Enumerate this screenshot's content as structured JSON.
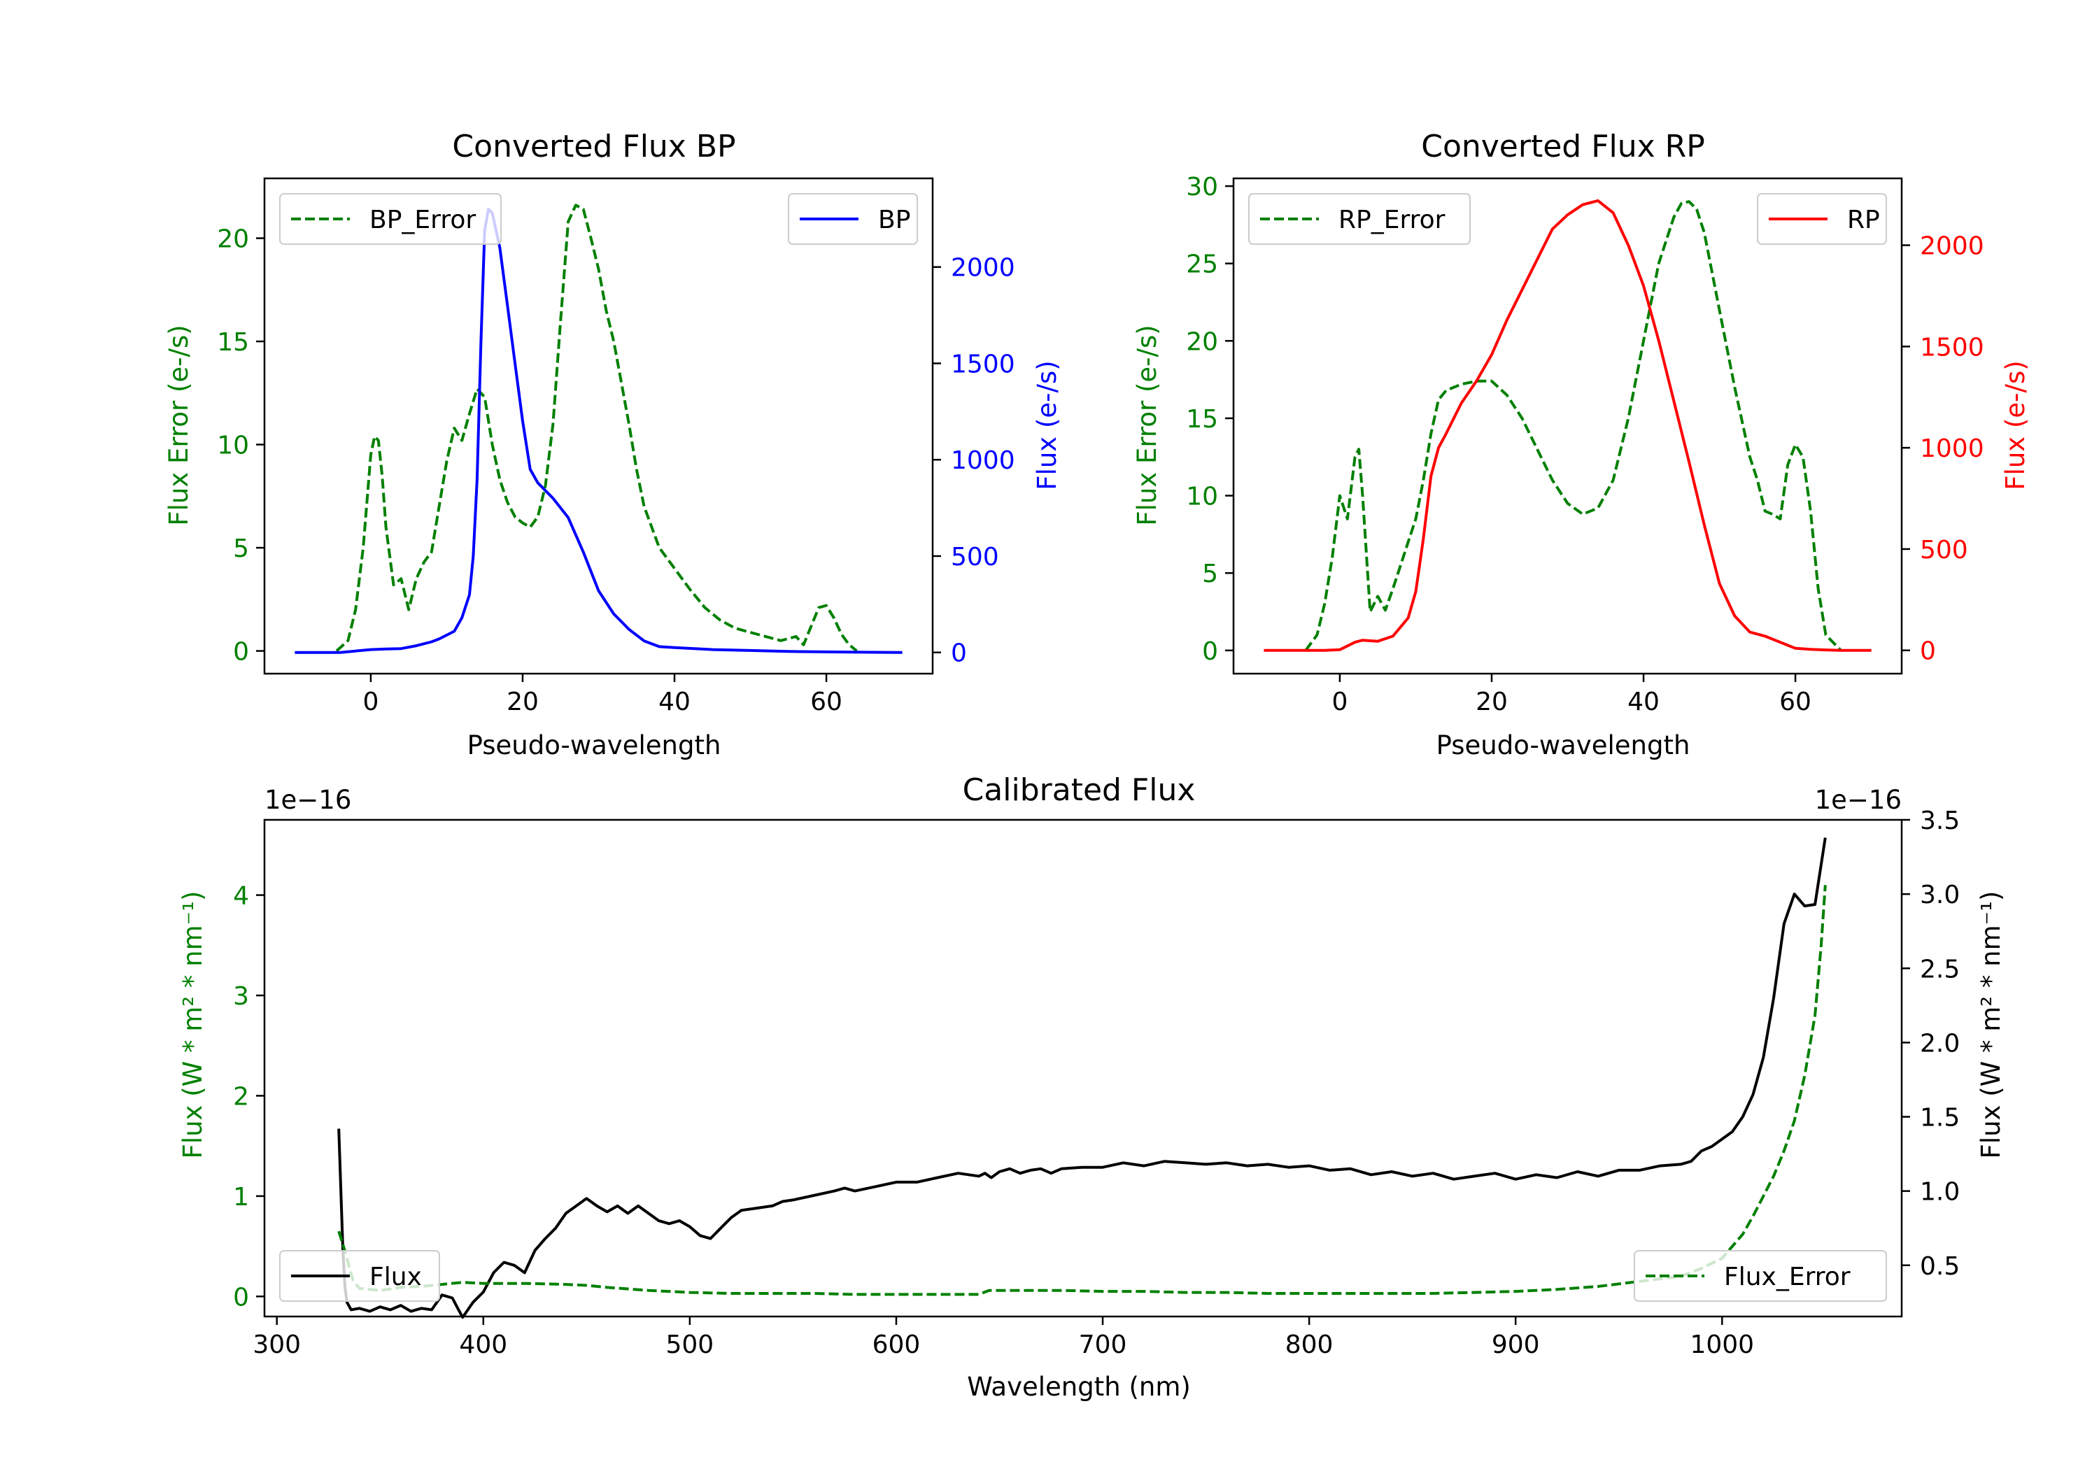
{
  "colors": {
    "green": "#008000",
    "blue": "#0000ff",
    "red": "#ff0000",
    "black": "#000000"
  },
  "chart_data": [
    {
      "id": "bp",
      "type": "line",
      "title": "Converted Flux BP",
      "xlabel": "Pseudo-wavelength",
      "ylabel_left": "Flux Error (e-/s)",
      "ylabel_right": "Flux (e-/s)",
      "xlim": [
        -14,
        74
      ],
      "ylim_left": [
        -1.1,
        22.9
      ],
      "ylim_right": [
        -110,
        2460
      ],
      "xticks": [
        0,
        20,
        40,
        60
      ],
      "yticks_left": [
        0,
        5,
        10,
        15,
        20
      ],
      "yticks_right": [
        0,
        500,
        1000,
        1500,
        2000
      ],
      "series": [
        {
          "name": "BP_Error",
          "axis": "left",
          "color": "#008000",
          "dash": true,
          "legend": "top-left",
          "x": [
            -4.5,
            -3,
            -2,
            -1,
            0,
            0.5,
            1,
            1.5,
            2,
            3,
            4,
            5,
            6,
            7,
            8,
            9,
            10,
            11,
            12,
            13,
            14,
            15,
            16,
            17,
            18,
            19,
            20,
            21,
            22,
            23,
            24,
            25,
            26,
            27,
            28,
            29,
            30,
            31,
            32,
            33,
            34,
            35,
            36,
            38,
            40,
            42,
            44,
            46,
            48,
            50,
            52,
            54,
            56,
            57,
            58,
            59,
            60,
            61,
            62,
            63,
            64
          ],
          "y": [
            0,
            0.5,
            2,
            5,
            9.5,
            10.4,
            10.2,
            8.5,
            6,
            3.2,
            3.5,
            2,
            3.5,
            4.3,
            4.8,
            7,
            9.2,
            10.8,
            10.2,
            11.5,
            12.7,
            12.3,
            10,
            8.3,
            7.2,
            6.5,
            6.2,
            6.0,
            6.5,
            8,
            11,
            16,
            20.8,
            21.6,
            21.4,
            20,
            18.5,
            16.5,
            15,
            13,
            11,
            8.8,
            7,
            5,
            4,
            3,
            2.1,
            1.5,
            1.1,
            0.9,
            0.7,
            0.5,
            0.7,
            0.3,
            1.2,
            2.1,
            2.2,
            1.6,
            0.8,
            0.3,
            0
          ]
        },
        {
          "name": "BP",
          "axis": "right",
          "color": "#0000ff",
          "dash": false,
          "legend": "top-right",
          "x": [
            -10,
            -4,
            0,
            2,
            4,
            6,
            8,
            9,
            10,
            11,
            12,
            13,
            13.5,
            14,
            14.5,
            15,
            15.5,
            16,
            17,
            18,
            19,
            20,
            21,
            22,
            24,
            26,
            28,
            30,
            32,
            34,
            36,
            38,
            40,
            45,
            50,
            55,
            60,
            65,
            70
          ],
          "y": [
            0,
            0,
            15,
            18,
            20,
            35,
            55,
            70,
            90,
            110,
            180,
            300,
            500,
            900,
            1600,
            2190,
            2300,
            2280,
            2100,
            1800,
            1500,
            1200,
            950,
            880,
            800,
            700,
            520,
            320,
            200,
            120,
            60,
            30,
            25,
            15,
            10,
            5,
            3,
            1,
            0
          ]
        }
      ]
    },
    {
      "id": "rp",
      "type": "line",
      "title": "Converted Flux RP",
      "xlabel": "Pseudo-wavelength",
      "ylabel_left": "Flux Error (e-/s)",
      "ylabel_right": "Flux (e-/s)",
      "xlim": [
        -14,
        74
      ],
      "ylim_left": [
        -1.5,
        30.5
      ],
      "ylim_right": [
        -115,
        2330
      ],
      "xticks": [
        0,
        20,
        40,
        60
      ],
      "yticks_left": [
        0,
        5,
        10,
        15,
        20,
        25,
        30
      ],
      "yticks_right": [
        0,
        500,
        1000,
        1500,
        2000
      ],
      "series": [
        {
          "name": "RP_Error",
          "axis": "left",
          "color": "#008000",
          "dash": true,
          "legend": "top-left",
          "x": [
            -4.5,
            -3,
            -2,
            -1,
            0,
            1,
            2,
            2.5,
            3,
            4,
            5,
            6,
            7,
            8,
            9,
            10,
            11,
            12,
            13,
            14,
            16,
            18,
            20,
            22,
            24,
            26,
            28,
            30,
            32,
            34,
            36,
            38,
            40,
            42,
            44,
            45,
            46,
            47,
            48,
            50,
            52,
            54,
            55,
            56,
            57,
            58,
            59,
            60,
            61,
            62,
            63,
            64,
            66
          ],
          "y": [
            0,
            1,
            3,
            6,
            10,
            8.5,
            12.5,
            13,
            10,
            2.5,
            3.5,
            2.6,
            4,
            5.5,
            7,
            8.5,
            11,
            14,
            16.2,
            16.8,
            17.2,
            17.4,
            17.4,
            16.5,
            15,
            13,
            11,
            9.5,
            8.8,
            9.2,
            11,
            15,
            20,
            25,
            28,
            28.9,
            29,
            28.5,
            27,
            22,
            17,
            12.5,
            11,
            9,
            8.8,
            8.5,
            12,
            13.3,
            12.5,
            9,
            4,
            1,
            0
          ]
        },
        {
          "name": "RP",
          "axis": "right",
          "color": "#ff0000",
          "dash": false,
          "legend": "top-right",
          "x": [
            -10,
            -2,
            0,
            2,
            3,
            5,
            7,
            9,
            10,
            11,
            12,
            13,
            14,
            16,
            18,
            20,
            22,
            24,
            26,
            28,
            30,
            32,
            34,
            36,
            38,
            40,
            42,
            44,
            46,
            48,
            50,
            52,
            54,
            56,
            58,
            60,
            62,
            64,
            66,
            70
          ],
          "y": [
            0,
            0,
            3,
            40,
            50,
            45,
            70,
            160,
            290,
            550,
            860,
            1000,
            1070,
            1220,
            1330,
            1460,
            1630,
            1780,
            1930,
            2080,
            2150,
            2200,
            2220,
            2160,
            2000,
            1800,
            1530,
            1230,
            930,
            620,
            330,
            170,
            90,
            70,
            40,
            10,
            5,
            2,
            0,
            0
          ]
        }
      ]
    },
    {
      "id": "calibrated",
      "type": "line",
      "title": "Calibrated Flux",
      "xlabel": "Wavelength (nm)",
      "ylabel_left": "Flux (W * m² * nm⁻¹)",
      "ylabel_right": "Flux (W * m² * nm⁻¹)",
      "offset_left": "1e−16",
      "offset_right": "1e−16",
      "xlim": [
        294,
        1087
      ],
      "ylim_left": [
        -0.2,
        4.75
      ],
      "ylim_right": [
        0.155,
        3.5
      ],
      "xticks": [
        300,
        400,
        500,
        600,
        700,
        800,
        900,
        1000
      ],
      "yticks_left": [
        0,
        1,
        2,
        3,
        4
      ],
      "yticks_left_labels": [
        "0",
        "1",
        "2",
        "3",
        "4"
      ],
      "yticks_right": [
        0.5,
        1.0,
        1.5,
        2.0,
        2.5,
        3.0,
        3.5
      ],
      "yticks_right_labels": [
        "0.5",
        "1.0",
        "1.5",
        "2.0",
        "2.5",
        "3.0",
        "3.5"
      ],
      "series": [
        {
          "name": "Flux",
          "axis": "right",
          "color": "#000000",
          "dash": false,
          "legend": "bottom-left",
          "x": [
            330,
            331,
            332,
            333,
            334,
            336,
            340,
            345,
            350,
            355,
            360,
            365,
            370,
            375,
            380,
            385,
            388,
            390,
            395,
            400,
            405,
            410,
            415,
            420,
            425,
            430,
            435,
            440,
            445,
            450,
            455,
            460,
            465,
            470,
            475,
            480,
            485,
            490,
            495,
            500,
            505,
            510,
            515,
            520,
            525,
            530,
            535,
            540,
            545,
            550,
            560,
            570,
            575,
            580,
            590,
            600,
            610,
            620,
            630,
            640,
            643,
            646,
            650,
            655,
            660,
            665,
            670,
            675,
            680,
            690,
            700,
            710,
            720,
            730,
            740,
            750,
            760,
            770,
            780,
            790,
            800,
            810,
            820,
            830,
            840,
            850,
            860,
            870,
            880,
            890,
            900,
            910,
            920,
            930,
            940,
            950,
            960,
            970,
            980,
            985,
            990,
            995,
            1000,
            1005,
            1010,
            1015,
            1020,
            1025,
            1030,
            1035,
            1040,
            1045,
            1050
          ],
          "y": [
            1.42,
            1.0,
            0.6,
            0.35,
            0.25,
            0.2,
            0.21,
            0.19,
            0.22,
            0.2,
            0.23,
            0.19,
            0.21,
            0.2,
            0.3,
            0.28,
            0.2,
            0.15,
            0.25,
            0.32,
            0.45,
            0.52,
            0.5,
            0.45,
            0.6,
            0.68,
            0.75,
            0.85,
            0.9,
            0.95,
            0.9,
            0.86,
            0.9,
            0.85,
            0.9,
            0.85,
            0.8,
            0.78,
            0.8,
            0.76,
            0.7,
            0.68,
            0.75,
            0.82,
            0.87,
            0.88,
            0.89,
            0.9,
            0.93,
            0.94,
            0.97,
            1.0,
            1.02,
            1.0,
            1.03,
            1.06,
            1.06,
            1.09,
            1.12,
            1.1,
            1.12,
            1.09,
            1.13,
            1.15,
            1.12,
            1.14,
            1.15,
            1.12,
            1.15,
            1.16,
            1.16,
            1.19,
            1.17,
            1.2,
            1.19,
            1.18,
            1.19,
            1.17,
            1.18,
            1.16,
            1.17,
            1.14,
            1.15,
            1.11,
            1.13,
            1.1,
            1.12,
            1.08,
            1.1,
            1.12,
            1.08,
            1.11,
            1.09,
            1.13,
            1.1,
            1.14,
            1.14,
            1.17,
            1.18,
            1.2,
            1.27,
            1.3,
            1.35,
            1.4,
            1.5,
            1.65,
            1.9,
            2.3,
            2.8,
            3.0,
            2.92,
            2.93,
            3.38
          ]
        },
        {
          "name": "Flux_Error",
          "axis": "left",
          "color": "#008000",
          "dash": true,
          "legend": "bottom-right",
          "x": [
            330,
            333,
            337,
            340,
            345,
            350,
            360,
            370,
            380,
            390,
            400,
            420,
            440,
            450,
            460,
            480,
            500,
            520,
            540,
            560,
            580,
            600,
            620,
            640,
            645,
            650,
            660,
            680,
            700,
            720,
            740,
            760,
            780,
            800,
            820,
            840,
            860,
            880,
            900,
            920,
            940,
            960,
            980,
            990,
            1000,
            1005,
            1010,
            1015,
            1020,
            1025,
            1030,
            1035,
            1040,
            1045,
            1048,
            1050
          ],
          "y": [
            0.65,
            0.45,
            0.15,
            0.08,
            0.07,
            0.06,
            0.09,
            0.1,
            0.12,
            0.14,
            0.13,
            0.13,
            0.12,
            0.11,
            0.09,
            0.06,
            0.04,
            0.03,
            0.03,
            0.03,
            0.02,
            0.02,
            0.02,
            0.02,
            0.06,
            0.06,
            0.06,
            0.06,
            0.05,
            0.05,
            0.04,
            0.04,
            0.03,
            0.03,
            0.03,
            0.03,
            0.03,
            0.04,
            0.05,
            0.07,
            0.1,
            0.15,
            0.2,
            0.28,
            0.38,
            0.5,
            0.62,
            0.8,
            1.0,
            1.2,
            1.45,
            1.75,
            2.2,
            2.8,
            3.5,
            4.1
          ]
        }
      ]
    }
  ]
}
